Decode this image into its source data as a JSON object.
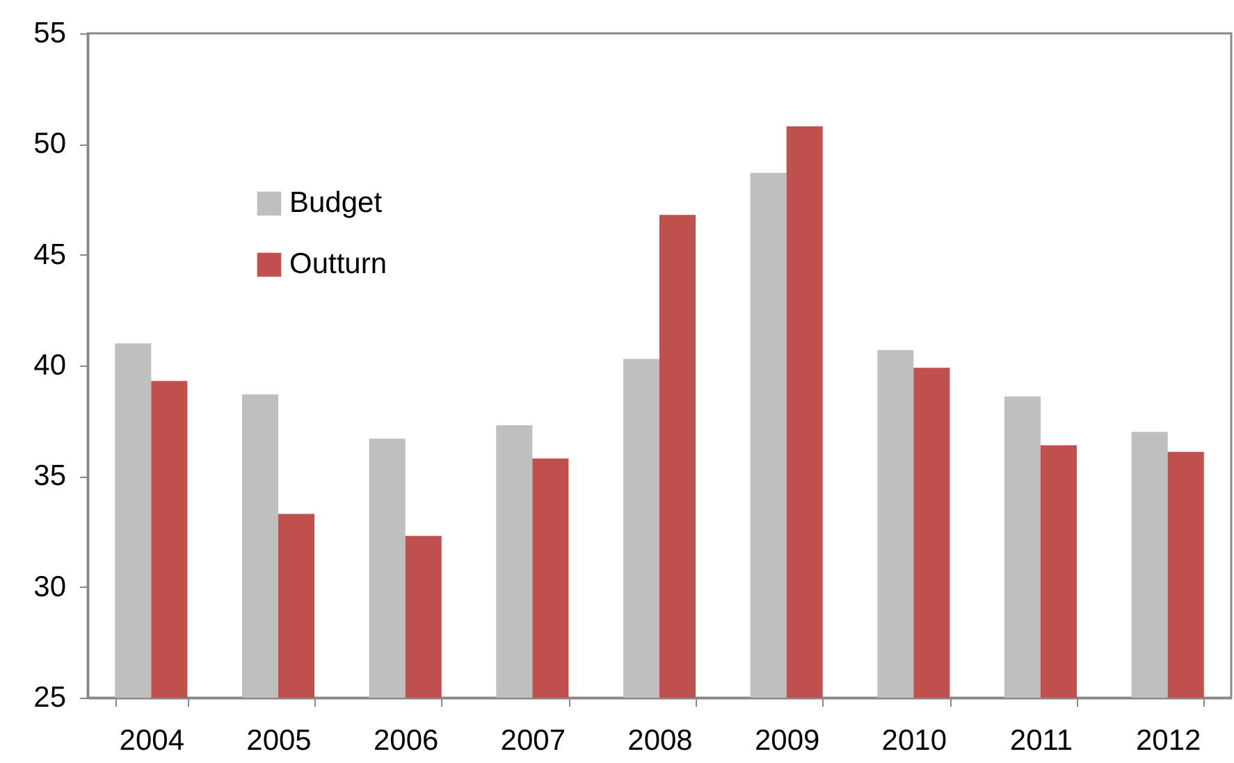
{
  "chart_data": {
    "type": "bar",
    "categories": [
      "2004",
      "2005",
      "2006",
      "2007",
      "2008",
      "2009",
      "2010",
      "2011",
      "2012"
    ],
    "series": [
      {
        "name": "Budget",
        "color": "#bfbfbf",
        "values": [
          41.0,
          38.7,
          36.7,
          37.3,
          40.3,
          48.7,
          40.7,
          38.6,
          37.0
        ]
      },
      {
        "name": "Outturn",
        "color": "#c0504d",
        "values": [
          39.3,
          33.3,
          32.3,
          35.8,
          46.8,
          50.8,
          39.9,
          36.4,
          36.1
        ]
      }
    ],
    "ylim": [
      25,
      55
    ],
    "yticks": [
      25,
      30,
      35,
      40,
      45,
      50,
      55
    ],
    "grid": false,
    "legend": "top left"
  }
}
